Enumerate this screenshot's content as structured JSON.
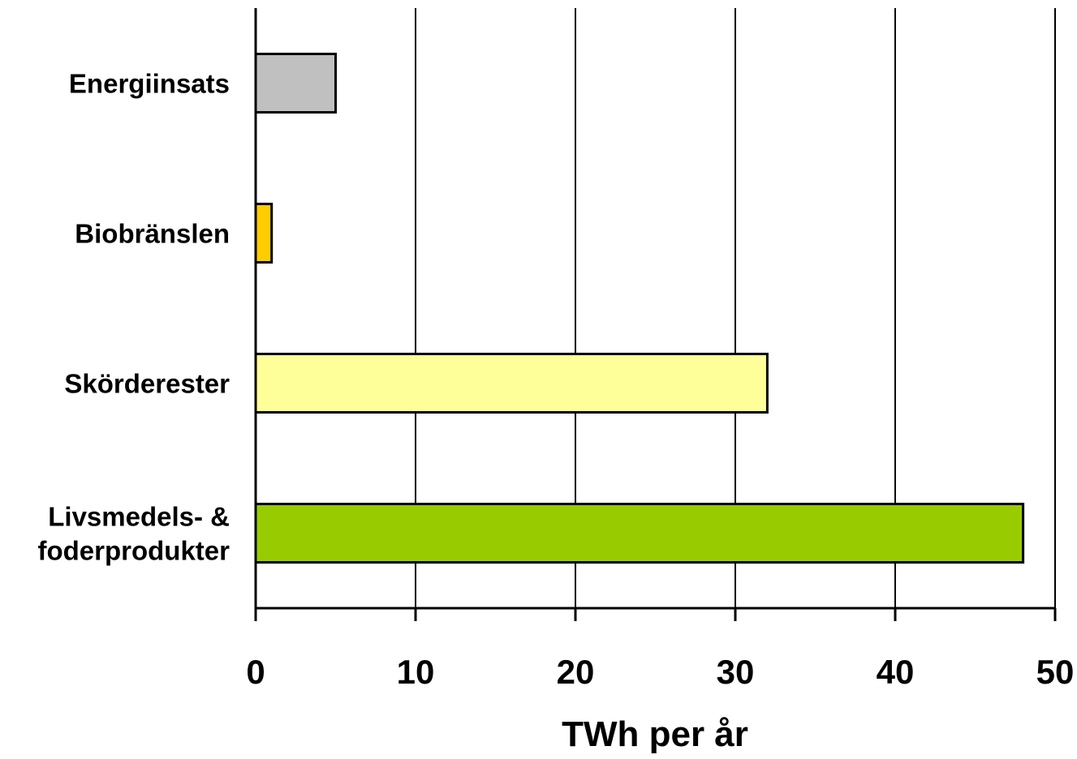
{
  "chart_data": {
    "type": "bar",
    "orientation": "horizontal",
    "categories": [
      [
        "Energiinsats"
      ],
      [
        "Biobränslen"
      ],
      [
        "Skörderester"
      ],
      [
        "Livsmedels- &",
        "foderprodukter"
      ]
    ],
    "values": [
      5,
      1,
      32,
      48
    ],
    "bar_colors": [
      "#c0c0c0",
      "#ffcc00",
      "#ffff99",
      "#99cc00"
    ],
    "xlabel": "TWh per år",
    "ylabel": "",
    "title": "",
    "xlim": [
      0,
      50
    ],
    "xticks": [
      "0",
      "10",
      "20",
      "30",
      "40",
      "50"
    ],
    "grid": "vertical",
    "legend": "none"
  }
}
